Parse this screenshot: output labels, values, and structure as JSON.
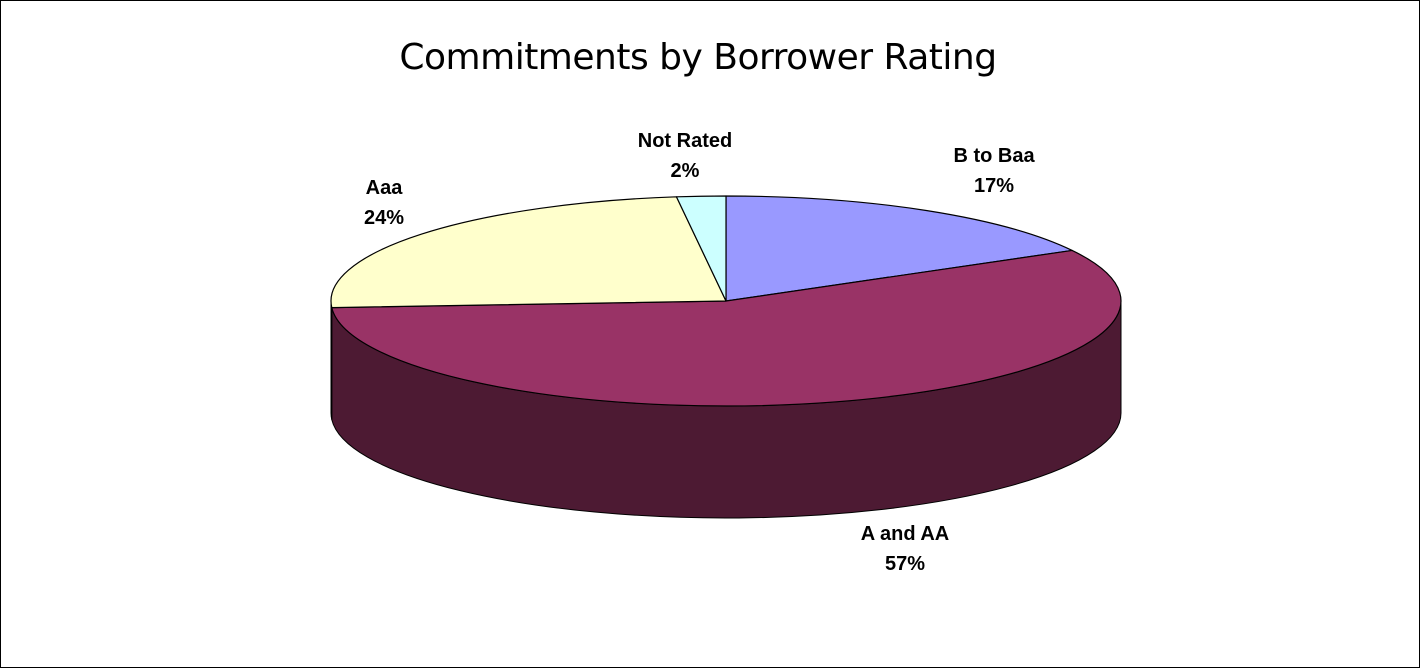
{
  "chart_data": {
    "type": "pie",
    "title": "Commitments by Borrower Rating",
    "slices": [
      {
        "name": "B to Baa",
        "value": 17,
        "label": "17%",
        "color": "#9999ff",
        "side_color": "#4d4d80"
      },
      {
        "name": "A and AA",
        "value": 57,
        "label": "57%",
        "color": "#993366",
        "side_color": "#4d1a33"
      },
      {
        "name": "Aaa",
        "value": 24,
        "label": "24%",
        "color": "#ffffcc",
        "side_color": "#808066"
      },
      {
        "name": "Not Rated",
        "value": 2,
        "label": "2%",
        "color": "#ccffff",
        "side_color": "#668080"
      }
    ],
    "style": "3d",
    "legend": "none"
  }
}
